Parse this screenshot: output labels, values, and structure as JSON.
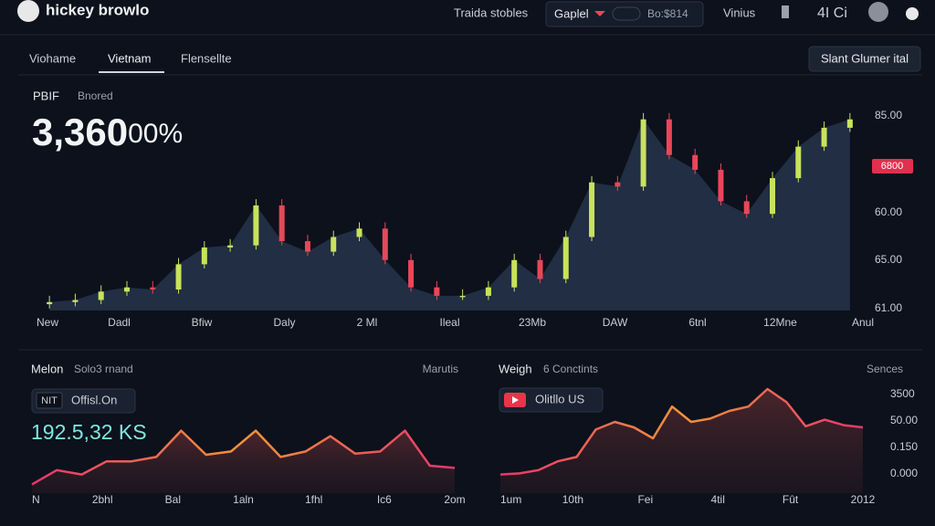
{
  "header": {
    "logo": "hickey browlo",
    "nav": "Traida stobles",
    "select": "Gaplel",
    "search": "Bo:$814",
    "menu": "Vinius",
    "count": "4I Ci"
  },
  "tabs": [
    "Viohame",
    "Vietnam",
    "Flensellte"
  ],
  "action_button": "Slant Glumer ital",
  "chart_data": [
    {
      "type": "candlestick",
      "label": "PBIF",
      "sublabel": "Bnored",
      "value": "3,360",
      "value_suffix": "00%",
      "price_tag": "6800",
      "price_labels": [
        "85.00",
        "60.00",
        "65.00",
        "61.00"
      ],
      "x_labels": [
        "New",
        "Dadl",
        "Bfiw",
        "Daly",
        "2 Ml",
        "Ileal",
        "23Mb",
        "DAW",
        "6tnl",
        "12Mne",
        "Anul"
      ],
      "ylim": [
        0,
        100
      ],
      "up_color": "#c8e35a",
      "down_color": "#e8475a",
      "area_color": "#26344a",
      "open": [
        3,
        4,
        5,
        9,
        11,
        10,
        22,
        30,
        31,
        50,
        33,
        28,
        35,
        39,
        24,
        11,
        7,
        7,
        11,
        24,
        15,
        35,
        61,
        59,
        91,
        74,
        67,
        52,
        46,
        63,
        78,
        87
      ],
      "high": [
        7,
        8,
        12,
        14,
        14,
        25,
        33,
        34,
        53,
        53,
        36,
        38,
        42,
        42,
        27,
        14,
        10,
        14,
        27,
        27,
        38,
        64,
        64,
        94,
        94,
        77,
        70,
        55,
        66,
        81,
        90,
        94
      ],
      "low": [
        1,
        2,
        3,
        7,
        8,
        8,
        20,
        28,
        29,
        31,
        26,
        26,
        33,
        22,
        9,
        5,
        5,
        5,
        9,
        13,
        13,
        33,
        57,
        57,
        72,
        65,
        50,
        44,
        44,
        61,
        76,
        85
      ],
      "close": [
        4,
        5,
        9,
        11,
        10,
        22,
        30,
        31,
        50,
        33,
        28,
        35,
        39,
        24,
        11,
        7,
        7,
        11,
        24,
        15,
        35,
        61,
        59,
        91,
        74,
        67,
        52,
        46,
        63,
        78,
        87,
        91
      ]
    },
    {
      "type": "line",
      "title": "Melon",
      "subtitle": "Solo3 rnand",
      "corner_label": "Marutis",
      "badge": "NIT",
      "badge_text": "Offisl.On",
      "value": "192.5,32 KS",
      "x_labels": [
        "N",
        "2bhl",
        "Bal",
        "1aln",
        "1fhl",
        "Ic6",
        "2om"
      ],
      "ylim": [
        0,
        100
      ],
      "colors": [
        "#e8356e",
        "#f2943a"
      ],
      "values": [
        8,
        21,
        17,
        29,
        29,
        33,
        57,
        35,
        38,
        57,
        33,
        38,
        52,
        36,
        38,
        57,
        25,
        23
      ]
    },
    {
      "type": "line",
      "title": "Weigh",
      "subtitle": "6 Conctints",
      "corner_label": "Sences",
      "badge_text": "Olitllo US",
      "price_labels": [
        "3500",
        "50.00",
        "0.150",
        "0.000"
      ],
      "x_labels": [
        "1um",
        "10th",
        "Fei",
        "4til",
        "Fût",
        "2012"
      ],
      "ylim": [
        0,
        100
      ],
      "colors": [
        "#e8356e",
        "#f2943a"
      ],
      "values": [
        17,
        18,
        21,
        29,
        33,
        58,
        65,
        60,
        50,
        79,
        65,
        68,
        75,
        79,
        95,
        83,
        61,
        67,
        62,
        60
      ]
    }
  ]
}
